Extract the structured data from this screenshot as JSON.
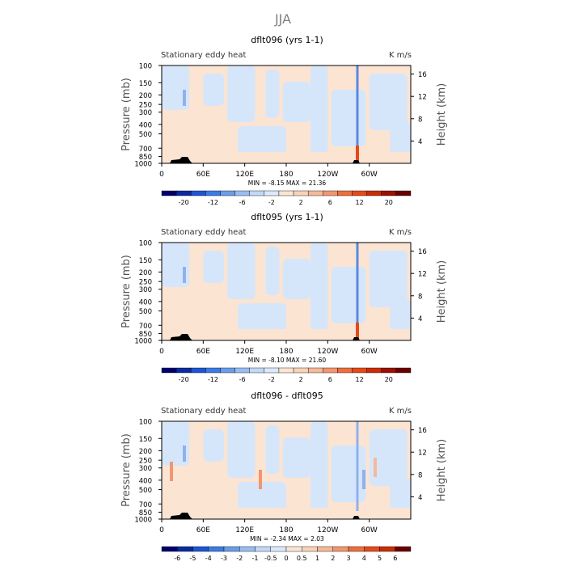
{
  "figure": {
    "title": "JJA"
  },
  "colors": {
    "neg": [
      "#00006e",
      "#0a2aa0",
      "#1f54d4",
      "#3a7ce6",
      "#6a9de8",
      "#99bdf2",
      "#c2d9f5",
      "#dbe9fb"
    ],
    "pos": [
      "#fbe4d2",
      "#f8d3b8",
      "#f5b99a",
      "#f29670",
      "#ee6e3c",
      "#e54a18",
      "#c92d05",
      "#9c1000",
      "#6a0000"
    ],
    "axis": "#000000"
  },
  "chart_data": [
    {
      "type": "heatmap",
      "title": "dflt096 (yrs 1-1)",
      "left_label": "Stationary eddy heat",
      "right_label": "K m/s",
      "xlabel": "",
      "ylabel": "Pressure (mb)",
      "y2label": "Height (km)",
      "x_ticks": [
        "0",
        "60E",
        "120E",
        "180",
        "120W",
        "60W"
      ],
      "x_tick_lon": [
        0,
        60,
        120,
        180,
        240,
        300
      ],
      "xlim": [
        0,
        360
      ],
      "y_ticks": [
        "100",
        "150",
        "200",
        "250",
        "300",
        "400",
        "500",
        "700",
        "850",
        "1000"
      ],
      "y_tick_p": [
        100,
        150,
        200,
        250,
        300,
        400,
        500,
        700,
        850,
        1000
      ],
      "ylim": [
        1000,
        100
      ],
      "y2_ticks": [
        "4",
        "8",
        "12",
        "16"
      ],
      "y2_tick_km": [
        4,
        8,
        12,
        16
      ],
      "min_max": "MIN =   -8.15   MAX =   21.36",
      "colorbar_labels": [
        "-20",
        "-12",
        "-6",
        "-2",
        "2",
        "6",
        "12",
        "20"
      ],
      "colorbar_levels": 17
    },
    {
      "type": "heatmap",
      "title": "dflt095 (yrs 1-1)",
      "left_label": "Stationary eddy heat",
      "right_label": "K m/s",
      "xlabel": "",
      "ylabel": "Pressure (mb)",
      "y2label": "Height (km)",
      "x_ticks": [
        "0",
        "60E",
        "120E",
        "180",
        "120W",
        "60W"
      ],
      "x_tick_lon": [
        0,
        60,
        120,
        180,
        240,
        300
      ],
      "xlim": [
        0,
        360
      ],
      "y_ticks": [
        "100",
        "150",
        "200",
        "250",
        "300",
        "400",
        "500",
        "700",
        "850",
        "1000"
      ],
      "y_tick_p": [
        100,
        150,
        200,
        250,
        300,
        400,
        500,
        700,
        850,
        1000
      ],
      "ylim": [
        1000,
        100
      ],
      "y2_ticks": [
        "4",
        "8",
        "12",
        "16"
      ],
      "y2_tick_km": [
        4,
        8,
        12,
        16
      ],
      "min_max": "MIN =   -8.10   MAX =   21.60",
      "colorbar_labels": [
        "-20",
        "-12",
        "-6",
        "-2",
        "2",
        "6",
        "12",
        "20"
      ],
      "colorbar_levels": 17
    },
    {
      "type": "heatmap",
      "title": "dflt096 - dflt095",
      "left_label": "Stationary eddy heat",
      "right_label": "K m/s",
      "xlabel": "",
      "ylabel": "Pressure (mb)",
      "y2label": "Height (km)",
      "x_ticks": [
        "0",
        "60E",
        "120E",
        "180",
        "120W",
        "60W"
      ],
      "x_tick_lon": [
        0,
        60,
        120,
        180,
        240,
        300
      ],
      "xlim": [
        0,
        360
      ],
      "y_ticks": [
        "100",
        "150",
        "200",
        "250",
        "300",
        "400",
        "500",
        "700",
        "850",
        "1000"
      ],
      "y_tick_p": [
        100,
        150,
        200,
        250,
        300,
        400,
        500,
        700,
        850,
        1000
      ],
      "ylim": [
        1000,
        100
      ],
      "y2_ticks": [
        "4",
        "8",
        "12",
        "16"
      ],
      "y2_tick_km": [
        4,
        8,
        12,
        16
      ],
      "min_max": "MIN =   -2.34   MAX =    2.03",
      "colorbar_labels": [
        "-6",
        "-5",
        "-4",
        "-3",
        "-2",
        "-1",
        "-0.5",
        "0",
        "0.5",
        "1",
        "2",
        "3",
        "4",
        "5",
        "6"
      ],
      "colorbar_levels": 16
    }
  ]
}
